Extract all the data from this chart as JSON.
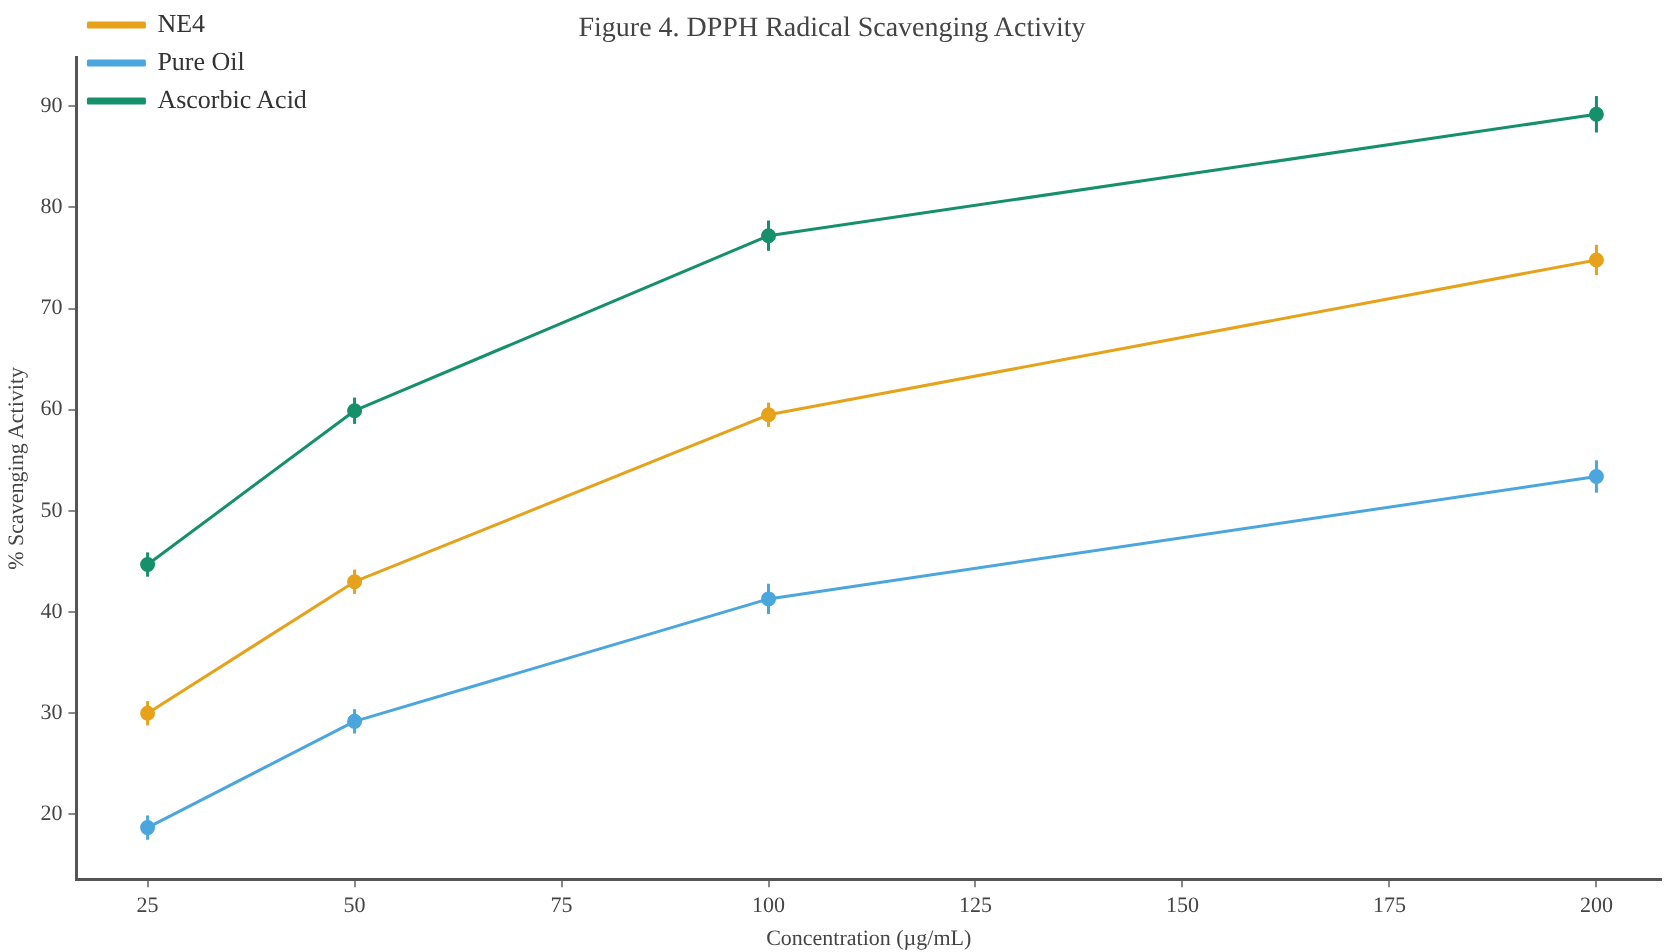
{
  "chart_data": {
    "type": "line",
    "title": "Figure 4. DPPH Radical Scavenging Activity",
    "xlabel": "Concentration (µg/mL)",
    "ylabel": "% Scavenging Activity",
    "x": [
      25,
      50,
      100,
      200
    ],
    "series": [
      {
        "name": "NE4",
        "color": "#e6a21a",
        "values": [
          30,
          43,
          59.5,
          74.8
        ],
        "errors": [
          1.2,
          1.2,
          1.2,
          1.5
        ]
      },
      {
        "name": "Pure Oil",
        "color": "#4aa6dc",
        "values": [
          18.7,
          29.2,
          41.3,
          53.4
        ],
        "errors": [
          1.2,
          1.2,
          1.5,
          1.6
        ]
      },
      {
        "name": "Ascorbic Acid",
        "color": "#16906a",
        "values": [
          44.7,
          59.9,
          77.2,
          89.2
        ],
        "errors": [
          1.2,
          1.3,
          1.5,
          1.8
        ]
      }
    ],
    "xlim": [
      16.4,
      207.8
    ],
    "xticks": [
      25,
      50,
      75,
      100,
      125,
      150,
      175,
      200
    ],
    "ylim": [
      13.6,
      94.8
    ],
    "yticks": [
      20,
      30,
      40,
      50,
      60,
      70,
      80,
      90
    ],
    "grid": false,
    "legend": "top left",
    "marker": "circle",
    "line_style": "solid"
  }
}
